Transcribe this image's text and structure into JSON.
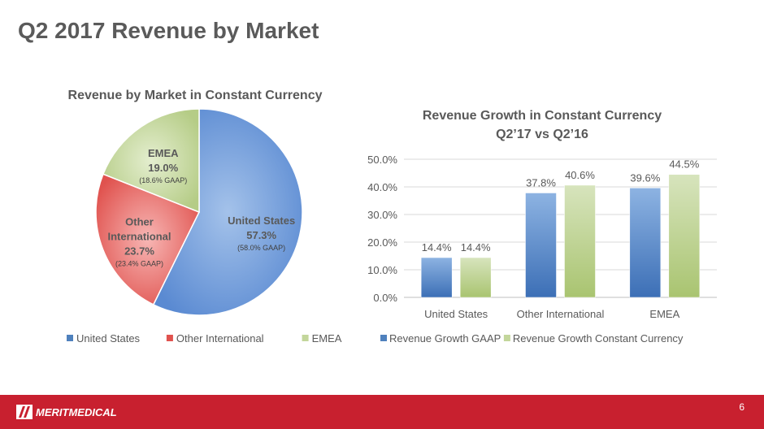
{
  "slide": {
    "title": "Q2 2017 Revenue by Market",
    "page_number": "6",
    "logo_text": "MERITMEDICAL"
  },
  "colors": {
    "blue": "#4f81bd",
    "red": "#e0524e",
    "green": "#c3d69b",
    "footer": "#c8202f"
  },
  "chart_data": [
    {
      "type": "pie",
      "title": "Revenue by Market in Constant Currency",
      "categories": [
        "United States",
        "Other International",
        "EMEA"
      ],
      "values": [
        57.3,
        23.7,
        19.0
      ],
      "data_labels": [
        {
          "name": "United States",
          "value": "57.3%",
          "note": "(58.0% GAAP)"
        },
        {
          "name": "Other\nInternational",
          "value": "23.7%",
          "note": "(23.4% GAAP)"
        },
        {
          "name": "EMEA",
          "value": "19.0%",
          "note": "(18.6% GAAP)"
        }
      ],
      "legend": [
        "United States",
        "Other International",
        "EMEA"
      ],
      "legend_position": "bottom"
    },
    {
      "type": "bar",
      "title": "Revenue Growth in Constant Currency",
      "subtitle": "Q2’17 vs Q2’16",
      "categories": [
        "United States",
        "Other International",
        "EMEA"
      ],
      "series": [
        {
          "name": "Revenue Growth GAAP",
          "values": [
            14.4,
            37.8,
            39.6
          ]
        },
        {
          "name": "Revenue Growth Constant Currency",
          "values": [
            14.4,
            40.6,
            44.5
          ]
        }
      ],
      "ylim": [
        0,
        50
      ],
      "yticks": [
        "0.0%",
        "10.0%",
        "20.0%",
        "30.0%",
        "40.0%",
        "50.0%"
      ],
      "grid": true,
      "legend_position": "bottom"
    }
  ]
}
